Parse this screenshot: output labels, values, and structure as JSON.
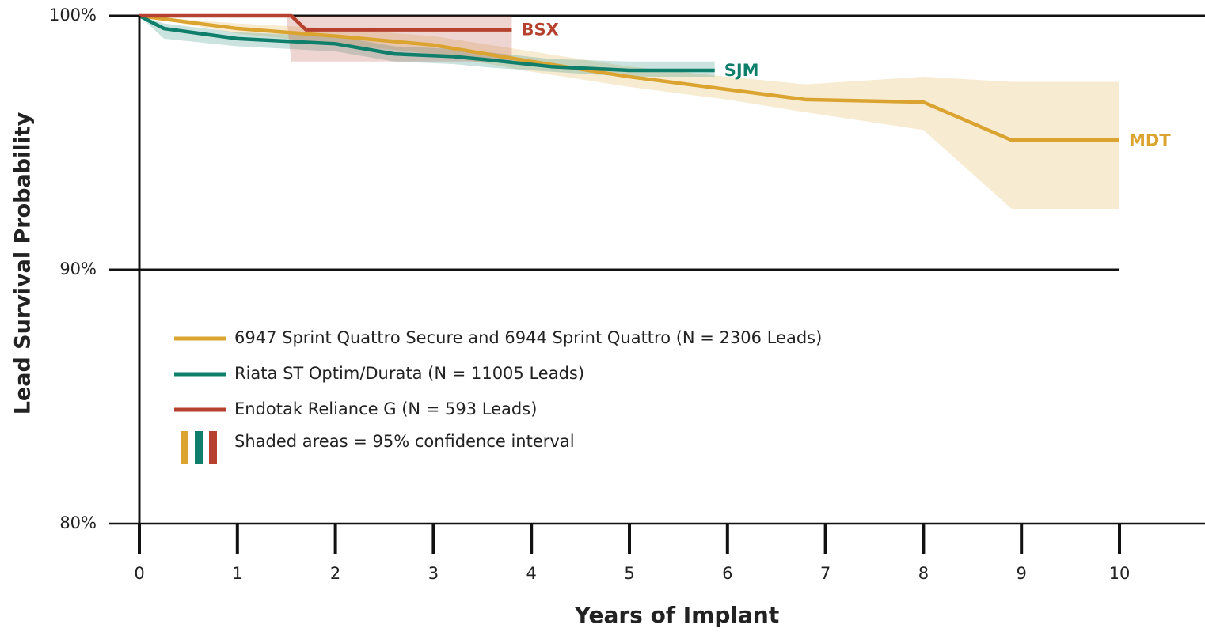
{
  "chart_data": {
    "type": "line",
    "y_label": "Lead Survival Probability",
    "x_label": "Years of Implant",
    "xlim": [
      0,
      10
    ],
    "ylim": [
      80,
      100
    ],
    "xticks": [
      0,
      1,
      2,
      3,
      4,
      5,
      6,
      7,
      8,
      9,
      10
    ],
    "yticks": [
      {
        "value": 80,
        "label": "80%"
      },
      {
        "value": 90,
        "label": "90%"
      },
      {
        "value": 100,
        "label": "100%"
      }
    ],
    "legend_note": "Shaded areas = 95% confidence interval",
    "series": [
      {
        "name": "6947 Sprint Quattro Secure and 6944 Sprint Quattro (N = 2306 Leads)",
        "label": "MDT",
        "color": "#dba430",
        "x": [
          0,
          1,
          2,
          3,
          4,
          5,
          6,
          6.8,
          8,
          8.9,
          10
        ],
        "values": [
          100,
          99.5,
          99.2,
          98.85,
          98.2,
          97.6,
          97.1,
          96.7,
          96.6,
          95.1,
          95.1
        ],
        "ci_upper": [
          100,
          99.7,
          99.5,
          99.2,
          98.6,
          98.0,
          97.6,
          97.3,
          97.6,
          97.4,
          97.4
        ],
        "ci_lower": [
          100,
          99.3,
          98.9,
          98.5,
          97.8,
          97.2,
          96.7,
          96.2,
          95.5,
          92.4,
          92.4
        ]
      },
      {
        "name": "Riata ST Optim/Durata (N = 11005 Leads)",
        "label": "SJM",
        "color": "#0f7f6c",
        "x": [
          0,
          0.25,
          1,
          2,
          2.6,
          3.2,
          3.6,
          4.2,
          5,
          5.87
        ],
        "values": [
          100,
          99.5,
          99.1,
          98.9,
          98.5,
          98.4,
          98.25,
          98.0,
          97.85,
          97.85
        ],
        "ci_upper": [
          100,
          99.7,
          99.35,
          99.2,
          98.8,
          98.7,
          98.55,
          98.3,
          98.2,
          98.2
        ],
        "ci_lower": [
          100,
          99.1,
          98.8,
          98.6,
          98.2,
          98.1,
          97.95,
          97.8,
          97.6,
          97.6
        ]
      },
      {
        "name": "Endotak Reliance G (N = 593 Leads)",
        "label": "BSX",
        "color": "#b5412e",
        "x": [
          0,
          1.5,
          1.55,
          1.7,
          3.8
        ],
        "values": [
          100,
          100,
          100,
          99.45,
          99.45
        ],
        "ci_upper": [
          100,
          100,
          100,
          100,
          100
        ],
        "ci_lower": [
          100,
          100,
          98.2,
          98.2,
          98.2
        ]
      }
    ]
  }
}
